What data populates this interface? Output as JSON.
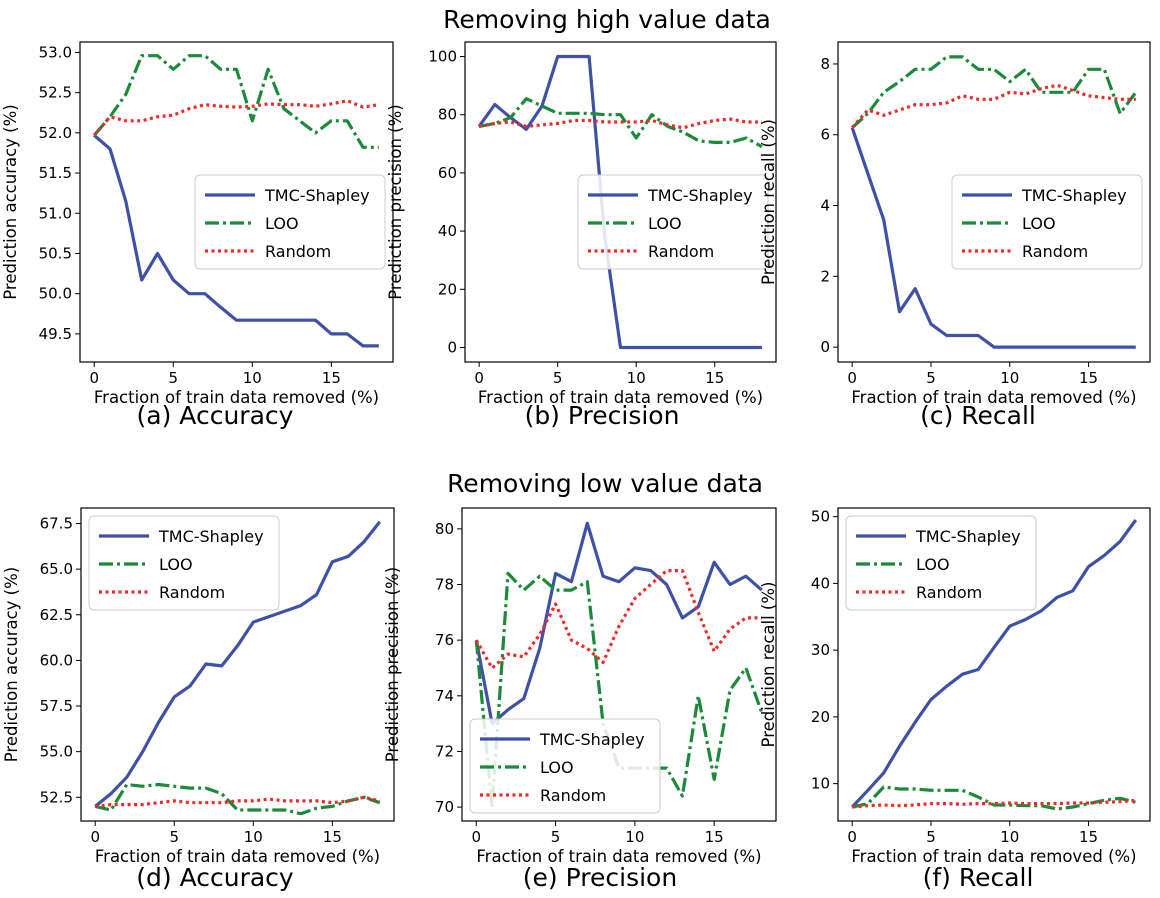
{
  "figure": {
    "row_titles": [
      "Removing high value data",
      "Removing low value data"
    ]
  },
  "colors": {
    "tmc": "#3e51a6",
    "loo": "#1b8a3a",
    "random": "#ee2a2a"
  },
  "chart_data": [
    {
      "type": "line",
      "caption": "(a) Accuracy",
      "xlabel": "Fraction of train data removed (%)",
      "ylabel": "Prediction accuracy (%)",
      "xlim": [
        -0.9,
        18.9
      ],
      "ylim": [
        49.15,
        53.13
      ],
      "xticks": [
        0,
        5,
        10,
        15
      ],
      "yticks": [
        49.5,
        50.0,
        50.5,
        51.0,
        51.5,
        52.0,
        52.5,
        53.0
      ],
      "ytick_labels": [
        "49.5",
        "50.0",
        "50.5",
        "51.0",
        "51.5",
        "52.0",
        "52.5",
        "53.0"
      ],
      "legend": "center-right",
      "x": [
        0,
        1,
        2,
        3,
        4,
        5,
        6,
        7,
        8,
        9,
        10,
        11,
        12,
        13,
        14,
        15,
        16,
        17,
        18
      ],
      "series": [
        {
          "name": "TMC-Shapley",
          "values": [
            51.97,
            51.8,
            51.15,
            50.17,
            50.5,
            50.17,
            50.0,
            50.0,
            49.83,
            49.67,
            49.67,
            49.67,
            49.67,
            49.67,
            49.67,
            49.5,
            49.5,
            49.35,
            49.35
          ]
        },
        {
          "name": "LOO",
          "values": [
            51.97,
            52.2,
            52.48,
            52.96,
            52.96,
            52.79,
            52.96,
            52.96,
            52.79,
            52.79,
            52.15,
            52.79,
            52.3,
            52.15,
            52.0,
            52.15,
            52.15,
            51.82,
            51.82
          ]
        },
        {
          "name": "Random",
          "values": [
            51.97,
            52.2,
            52.15,
            52.15,
            52.2,
            52.22,
            52.3,
            52.35,
            52.33,
            52.32,
            52.33,
            52.36,
            52.35,
            52.35,
            52.33,
            52.36,
            52.4,
            52.32,
            52.35
          ]
        }
      ]
    },
    {
      "type": "line",
      "caption": "(b) Precision",
      "xlabel": "Fraction of train data removed (%)",
      "ylabel": "Prediction precision (%)",
      "xlim": [
        -0.9,
        18.9
      ],
      "ylim": [
        -5,
        105
      ],
      "xticks": [
        0,
        5,
        10,
        15
      ],
      "yticks": [
        0,
        20,
        40,
        60,
        80,
        100
      ],
      "ytick_labels": [
        "0",
        "20",
        "40",
        "60",
        "80",
        "100"
      ],
      "legend": "center-right",
      "x": [
        0,
        1,
        2,
        3,
        4,
        5,
        6,
        7,
        8,
        9,
        10,
        11,
        12,
        13,
        14,
        15,
        16,
        17,
        18
      ],
      "series": [
        {
          "name": "TMC-Shapley",
          "values": [
            76,
            83.5,
            79,
            75,
            83,
            100,
            100,
            100,
            38,
            0,
            0,
            0,
            0,
            0,
            0,
            0,
            0,
            0,
            0
          ]
        },
        {
          "name": "LOO",
          "values": [
            76,
            77,
            79,
            85.5,
            83,
            80.5,
            80.5,
            80.5,
            80,
            80,
            72,
            80,
            76,
            74,
            71,
            70.5,
            70.5,
            72,
            69
          ]
        },
        {
          "name": "Random",
          "values": [
            76,
            77,
            77.5,
            76,
            76.5,
            77,
            78,
            78,
            77.5,
            77.5,
            77.5,
            78,
            76.5,
            75.5,
            77,
            78,
            78.5,
            77.5,
            77.5
          ]
        }
      ]
    },
    {
      "type": "line",
      "caption": "(c) Recall",
      "xlabel": "Fraction of train data removed (%)",
      "ylabel": "Prediction recall (%)",
      "xlim": [
        -0.9,
        18.9
      ],
      "ylim": [
        -0.42,
        8.62
      ],
      "xticks": [
        0,
        5,
        10,
        15
      ],
      "yticks": [
        0,
        2,
        4,
        6,
        8
      ],
      "ytick_labels": [
        "0",
        "2",
        "4",
        "6",
        "8"
      ],
      "legend": "center-right",
      "x": [
        0,
        1,
        2,
        3,
        4,
        5,
        6,
        7,
        8,
        9,
        10,
        11,
        12,
        13,
        14,
        15,
        16,
        17,
        18
      ],
      "series": [
        {
          "name": "TMC-Shapley",
          "values": [
            6.2,
            4.9,
            3.6,
            1.0,
            1.65,
            0.65,
            0.33,
            0.33,
            0.33,
            0.0,
            0.0,
            0.0,
            0.0,
            0.0,
            0.0,
            0.0,
            0.0,
            0.0,
            0.0
          ]
        },
        {
          "name": "LOO",
          "values": [
            6.2,
            6.6,
            7.2,
            7.5,
            7.85,
            7.85,
            8.2,
            8.2,
            7.85,
            7.85,
            7.5,
            7.85,
            7.2,
            7.2,
            7.2,
            7.85,
            7.85,
            6.6,
            7.2
          ]
        },
        {
          "name": "Random",
          "values": [
            6.2,
            6.7,
            6.55,
            6.7,
            6.85,
            6.85,
            6.9,
            7.1,
            7.0,
            7.0,
            7.2,
            7.15,
            7.3,
            7.4,
            7.25,
            7.1,
            7.05,
            7.0,
            7.0
          ]
        }
      ]
    },
    {
      "type": "line",
      "caption": "(d) Accuracy",
      "xlabel": "Fraction of train data removed (%)",
      "ylabel": "Prediction accuracy (%)",
      "xlim": [
        -0.9,
        18.9
      ],
      "ylim": [
        51.2,
        68.35
      ],
      "xticks": [
        0,
        5,
        10,
        15
      ],
      "yticks": [
        52.5,
        55.0,
        57.5,
        60.0,
        62.5,
        65.0,
        67.5
      ],
      "ytick_labels": [
        "52.5",
        "55.0",
        "57.5",
        "60.0",
        "62.5",
        "65.0",
        "67.5"
      ],
      "legend": "top-left",
      "x": [
        0,
        1,
        2,
        3,
        4,
        5,
        6,
        7,
        8,
        9,
        10,
        11,
        12,
        13,
        14,
        15,
        16,
        17,
        18
      ],
      "series": [
        {
          "name": "TMC-Shapley",
          "values": [
            52.0,
            52.7,
            53.6,
            55.0,
            56.6,
            58.0,
            58.6,
            59.8,
            59.7,
            60.8,
            62.1,
            62.4,
            62.7,
            63.0,
            63.6,
            65.4,
            65.7,
            66.5,
            67.6
          ]
        },
        {
          "name": "LOO",
          "values": [
            52.0,
            51.8,
            53.2,
            53.1,
            53.2,
            53.1,
            53.0,
            53.0,
            52.7,
            51.8,
            51.8,
            51.8,
            51.8,
            51.6,
            51.9,
            52.0,
            52.3,
            52.5,
            52.2
          ]
        },
        {
          "name": "Random",
          "values": [
            52.0,
            52.1,
            52.1,
            52.1,
            52.2,
            52.3,
            52.2,
            52.2,
            52.2,
            52.3,
            52.3,
            52.4,
            52.3,
            52.3,
            52.3,
            52.2,
            52.3,
            52.5,
            52.3
          ]
        }
      ]
    },
    {
      "type": "line",
      "caption": "(e) Precision",
      "xlabel": "Fraction of train data removed (%)",
      "ylabel": "Prediction precision (%)",
      "xlim": [
        -0.9,
        18.9
      ],
      "ylim": [
        69.5,
        80.75
      ],
      "xticks": [
        0,
        5,
        10,
        15
      ],
      "yticks": [
        70,
        72,
        74,
        76,
        78,
        80
      ],
      "ytick_labels": [
        "70",
        "72",
        "74",
        "76",
        "78",
        "80"
      ],
      "legend": "bottom-left",
      "x": [
        0,
        1,
        2,
        3,
        4,
        5,
        6,
        7,
        8,
        9,
        10,
        11,
        12,
        13,
        14,
        15,
        16,
        17,
        18
      ],
      "series": [
        {
          "name": "TMC-Shapley",
          "values": [
            76.0,
            73.0,
            73.5,
            73.9,
            75.7,
            78.4,
            78.1,
            80.2,
            78.3,
            78.1,
            78.6,
            78.5,
            78.0,
            76.8,
            77.2,
            78.8,
            78.0,
            78.3,
            77.8
          ]
        },
        {
          "name": "LOO",
          "values": [
            76.0,
            70.0,
            78.4,
            77.8,
            78.3,
            77.8,
            77.8,
            78.1,
            73.0,
            71.4,
            71.4,
            71.4,
            71.4,
            70.4,
            74.0,
            71.0,
            74.2,
            75.0,
            73.4
          ]
        },
        {
          "name": "Random",
          "values": [
            76.0,
            75.0,
            75.5,
            75.4,
            76.2,
            77.3,
            76.0,
            75.7,
            75.2,
            76.5,
            77.5,
            78.0,
            78.5,
            78.5,
            77.0,
            75.6,
            76.4,
            76.8,
            76.8
          ]
        }
      ]
    },
    {
      "type": "line",
      "caption": "(f) Recall",
      "xlabel": "Fraction of train data removed (%)",
      "ylabel": "Prediction recall (%)",
      "xlim": [
        -0.9,
        18.9
      ],
      "ylim": [
        4.4,
        51.3
      ],
      "xticks": [
        0,
        5,
        10,
        15
      ],
      "yticks": [
        10,
        20,
        30,
        40,
        50
      ],
      "ytick_labels": [
        "10",
        "20",
        "30",
        "40",
        "50"
      ],
      "legend": "top-left",
      "x": [
        0,
        1,
        2,
        3,
        4,
        5,
        6,
        7,
        8,
        9,
        10,
        11,
        12,
        13,
        14,
        15,
        16,
        17,
        18
      ],
      "series": [
        {
          "name": "TMC-Shapley",
          "values": [
            6.5,
            9.0,
            11.6,
            15.6,
            19.2,
            22.6,
            24.6,
            26.4,
            27.1,
            30.4,
            33.6,
            34.6,
            35.9,
            37.9,
            38.9,
            42.5,
            44.2,
            46.3,
            49.5
          ]
        },
        {
          "name": "LOO",
          "values": [
            6.5,
            7.0,
            9.5,
            9.2,
            9.2,
            9.0,
            9.0,
            9.0,
            8.0,
            6.8,
            6.8,
            6.7,
            6.7,
            6.2,
            6.5,
            7.0,
            7.5,
            7.8,
            7.2
          ]
        },
        {
          "name": "Random",
          "values": [
            6.5,
            6.7,
            6.8,
            6.7,
            6.8,
            7.0,
            7.0,
            6.9,
            7.0,
            7.0,
            7.1,
            7.0,
            7.0,
            7.0,
            7.1,
            7.1,
            7.2,
            7.3,
            7.5
          ]
        }
      ]
    }
  ]
}
